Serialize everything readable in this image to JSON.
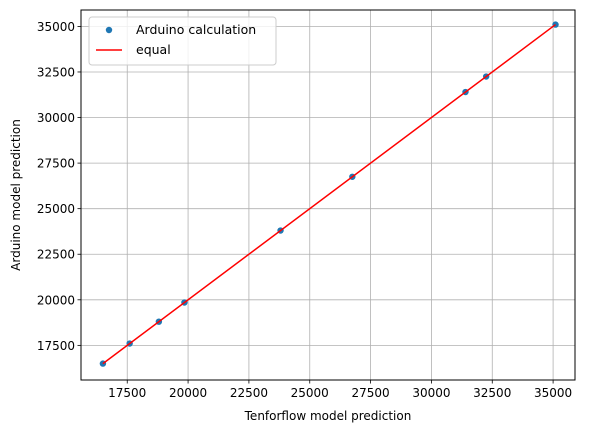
{
  "chart_data": {
    "type": "scatter",
    "title": "",
    "xlabel": "Tenforflow model prediction",
    "ylabel": "Arduino model prediction",
    "xlim": [
      15600,
      35900
    ],
    "ylim": [
      15600,
      35900
    ],
    "xticks": [
      17500,
      20000,
      22500,
      25000,
      27500,
      30000,
      32500,
      35000
    ],
    "yticks": [
      17500,
      20000,
      22500,
      25000,
      27500,
      30000,
      32500,
      35000
    ],
    "grid": true,
    "legend_position": "top-left",
    "series": [
      {
        "name": "Arduino calculation",
        "kind": "scatter",
        "color": "#1f77b4",
        "points": [
          {
            "x": 16500,
            "y": 16500
          },
          {
            "x": 17600,
            "y": 17600
          },
          {
            "x": 18800,
            "y": 18800
          },
          {
            "x": 19850,
            "y": 19850
          },
          {
            "x": 23800,
            "y": 23800
          },
          {
            "x": 26750,
            "y": 26750
          },
          {
            "x": 31400,
            "y": 31400
          },
          {
            "x": 32250,
            "y": 32250
          },
          {
            "x": 35100,
            "y": 35100
          }
        ]
      },
      {
        "name": "equal",
        "kind": "line",
        "color": "#ff0000",
        "points": [
          {
            "x": 16500,
            "y": 16500
          },
          {
            "x": 35100,
            "y": 35100
          }
        ]
      }
    ]
  }
}
